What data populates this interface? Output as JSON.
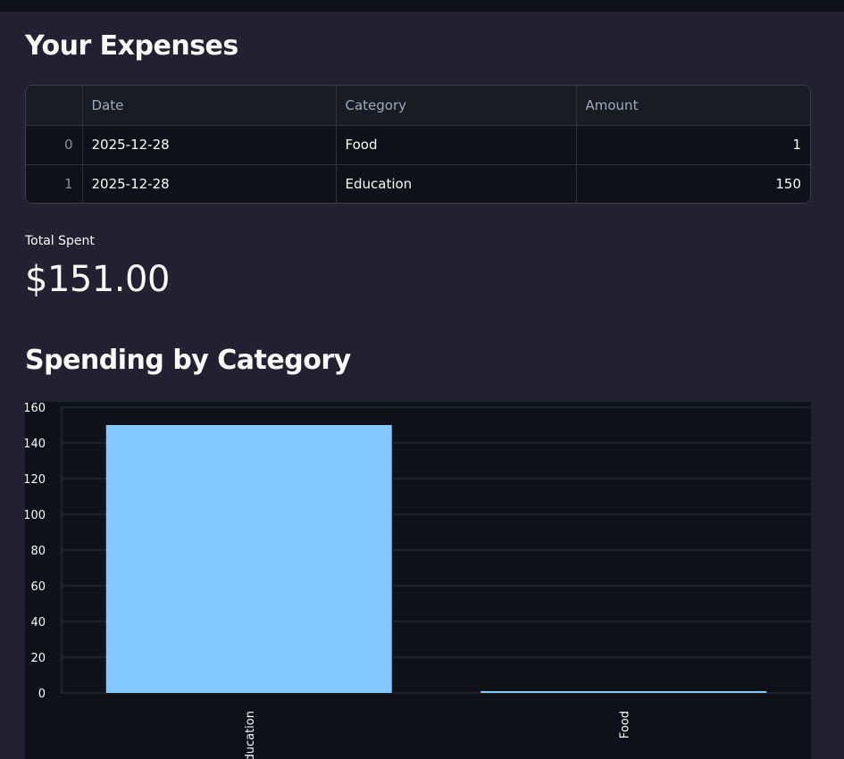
{
  "expenses": {
    "title": "Your Expenses",
    "columns": [
      "",
      "Date",
      "Category",
      "Amount"
    ],
    "rows": [
      {
        "index": "0",
        "date": "2025-12-28",
        "category": "Food",
        "amount": "1"
      },
      {
        "index": "1",
        "date": "2025-12-28",
        "category": "Education",
        "amount": "150"
      }
    ]
  },
  "metric": {
    "label": "Total Spent",
    "value": "$151.00"
  },
  "chart_section": {
    "title": "Spending by Category"
  },
  "chart_data": {
    "type": "bar",
    "categories": [
      "Education",
      "Food"
    ],
    "values": [
      150,
      1
    ],
    "ylim": [
      0,
      160
    ],
    "yticks": [
      0,
      20,
      40,
      60,
      80,
      100,
      120,
      140,
      160
    ],
    "bar_color": "#83c9ff",
    "grid": true,
    "xlabel": "",
    "ylabel": ""
  }
}
